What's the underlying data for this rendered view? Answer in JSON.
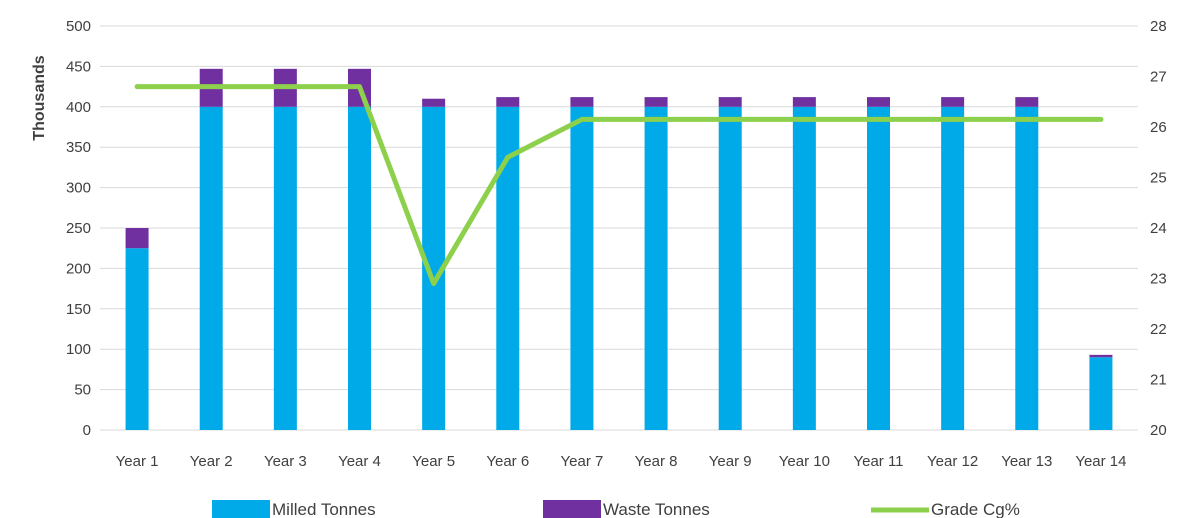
{
  "chart_data": {
    "type": "bar",
    "stacked": true,
    "categories": [
      "Year 1",
      "Year 2",
      "Year 3",
      "Year 4",
      "Year 5",
      "Year 6",
      "Year 7",
      "Year 8",
      "Year 9",
      "Year 10",
      "Year 11",
      "Year 12",
      "Year 13",
      "Year 14"
    ],
    "series": [
      {
        "name": "Milled Tonnes",
        "type": "bar",
        "axis": "left",
        "color": "#00a9e8",
        "values": [
          225,
          400,
          400,
          400,
          400,
          400,
          400,
          400,
          400,
          400,
          400,
          400,
          400,
          90
        ]
      },
      {
        "name": "Waste Tonnes",
        "type": "bar",
        "axis": "left",
        "color": "#7030a0",
        "values": [
          25,
          47,
          47,
          47,
          10,
          12,
          12,
          12,
          12,
          12,
          12,
          12,
          12,
          3
        ]
      },
      {
        "name": "Grade Cg%",
        "type": "line",
        "axis": "right",
        "color": "#8dd04c",
        "values": [
          26.8,
          26.8,
          26.8,
          26.8,
          22.9,
          25.4,
          26.15,
          26.15,
          26.15,
          26.15,
          26.15,
          26.15,
          26.15,
          26.15
        ]
      }
    ],
    "ylabel": "Thousands",
    "ylim": [
      0,
      500
    ],
    "y_ticks": [
      "0",
      "50",
      "100",
      "150",
      "200",
      "250",
      "300",
      "350",
      "400",
      "450",
      "500"
    ],
    "y2lim": [
      20,
      28
    ],
    "y2_ticks": [
      "20",
      "21",
      "22",
      "23",
      "24",
      "25",
      "26",
      "27",
      "28"
    ],
    "grid": true,
    "legend_position": "bottom"
  }
}
